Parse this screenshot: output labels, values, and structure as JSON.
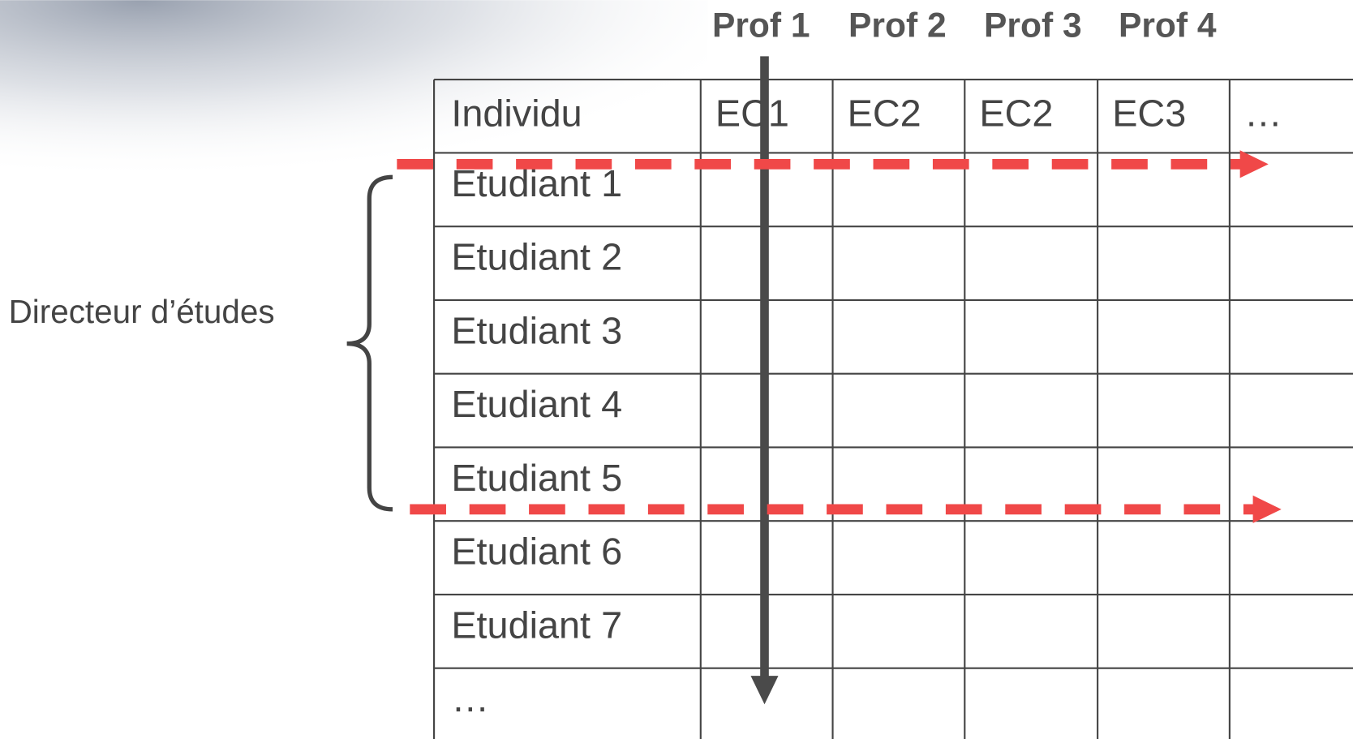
{
  "prof_labels": [
    "Prof 1",
    "Prof 2",
    "Prof 3",
    "Prof 4"
  ],
  "table": {
    "header": [
      "Individu",
      "EC1",
      "EC2",
      "EC2",
      "EC3",
      "…"
    ],
    "rows": [
      "Etudiant 1",
      "Etudiant 2",
      "Etudiant 3",
      "Etudiant 4",
      "Etudiant 5",
      "Etudiant 6",
      "Etudiant 7",
      "…"
    ]
  },
  "annotation": "Directeur d’études"
}
